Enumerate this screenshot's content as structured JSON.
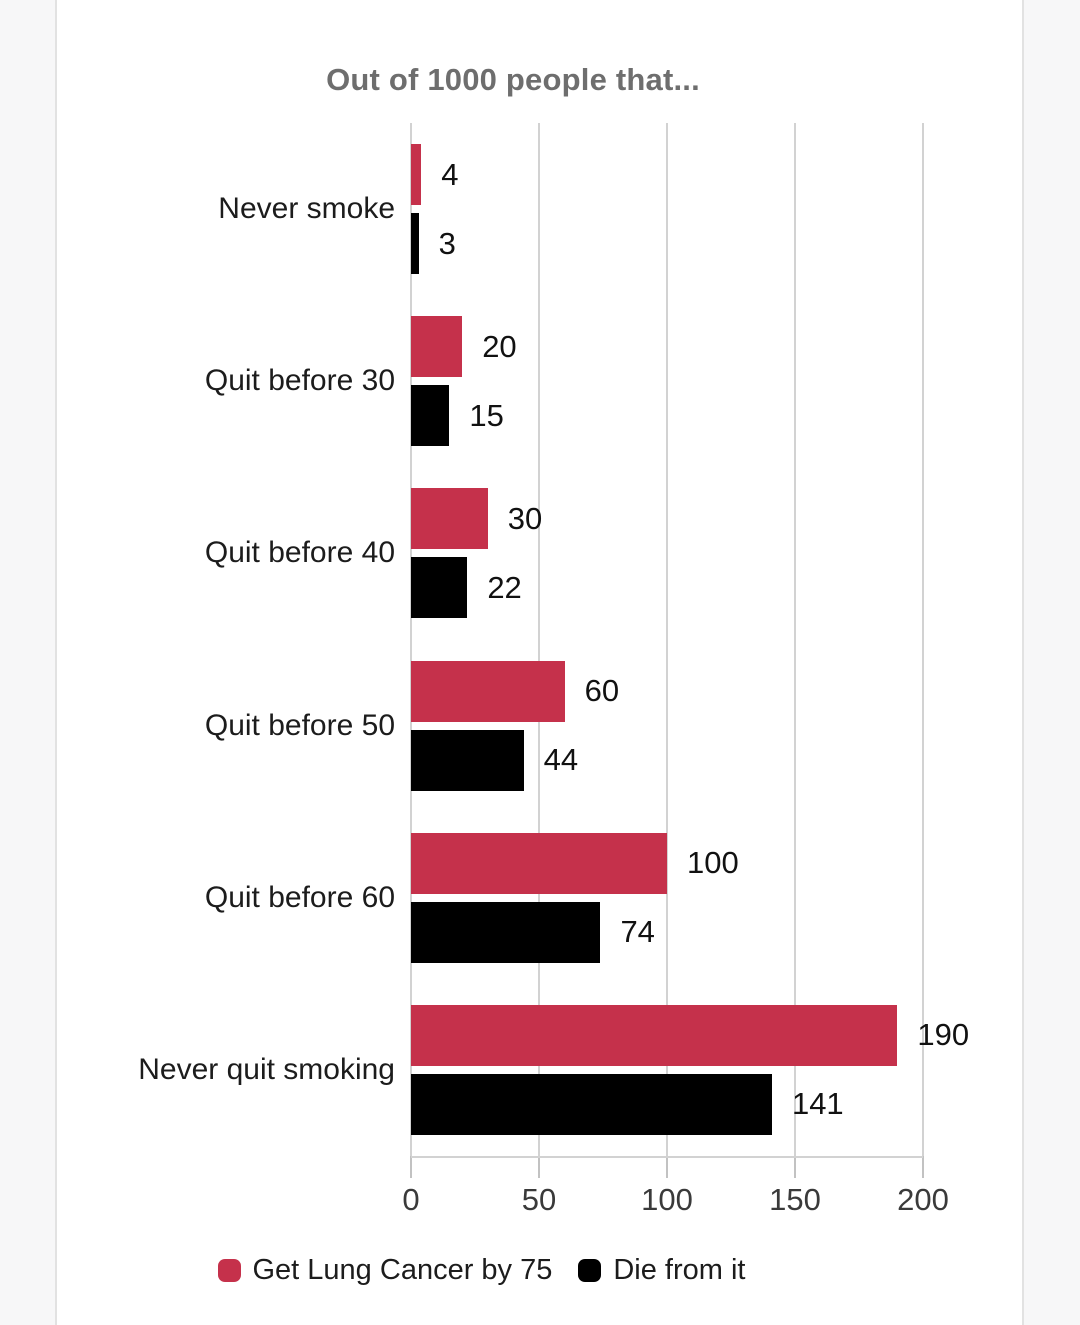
{
  "chart_data": {
    "type": "bar",
    "orientation": "horizontal",
    "title": "Out of 1000 people that...",
    "categories": [
      "Never smoke",
      "Quit before 30",
      "Quit before 40",
      "Quit before 50",
      "Quit before 60",
      "Never quit smoking"
    ],
    "series": [
      {
        "name": "Get Lung Cancer by 75",
        "color": "#c5314b",
        "values": [
          4,
          20,
          30,
          60,
          100,
          190
        ]
      },
      {
        "name": "Die from it",
        "color": "#000000",
        "values": [
          3,
          15,
          22,
          44,
          74,
          141
        ]
      }
    ],
    "x_ticks": [
      0,
      50,
      100,
      150,
      200
    ],
    "xlim": [
      0,
      200
    ],
    "grid": true,
    "data_labels": true,
    "legend_position": "bottom"
  }
}
